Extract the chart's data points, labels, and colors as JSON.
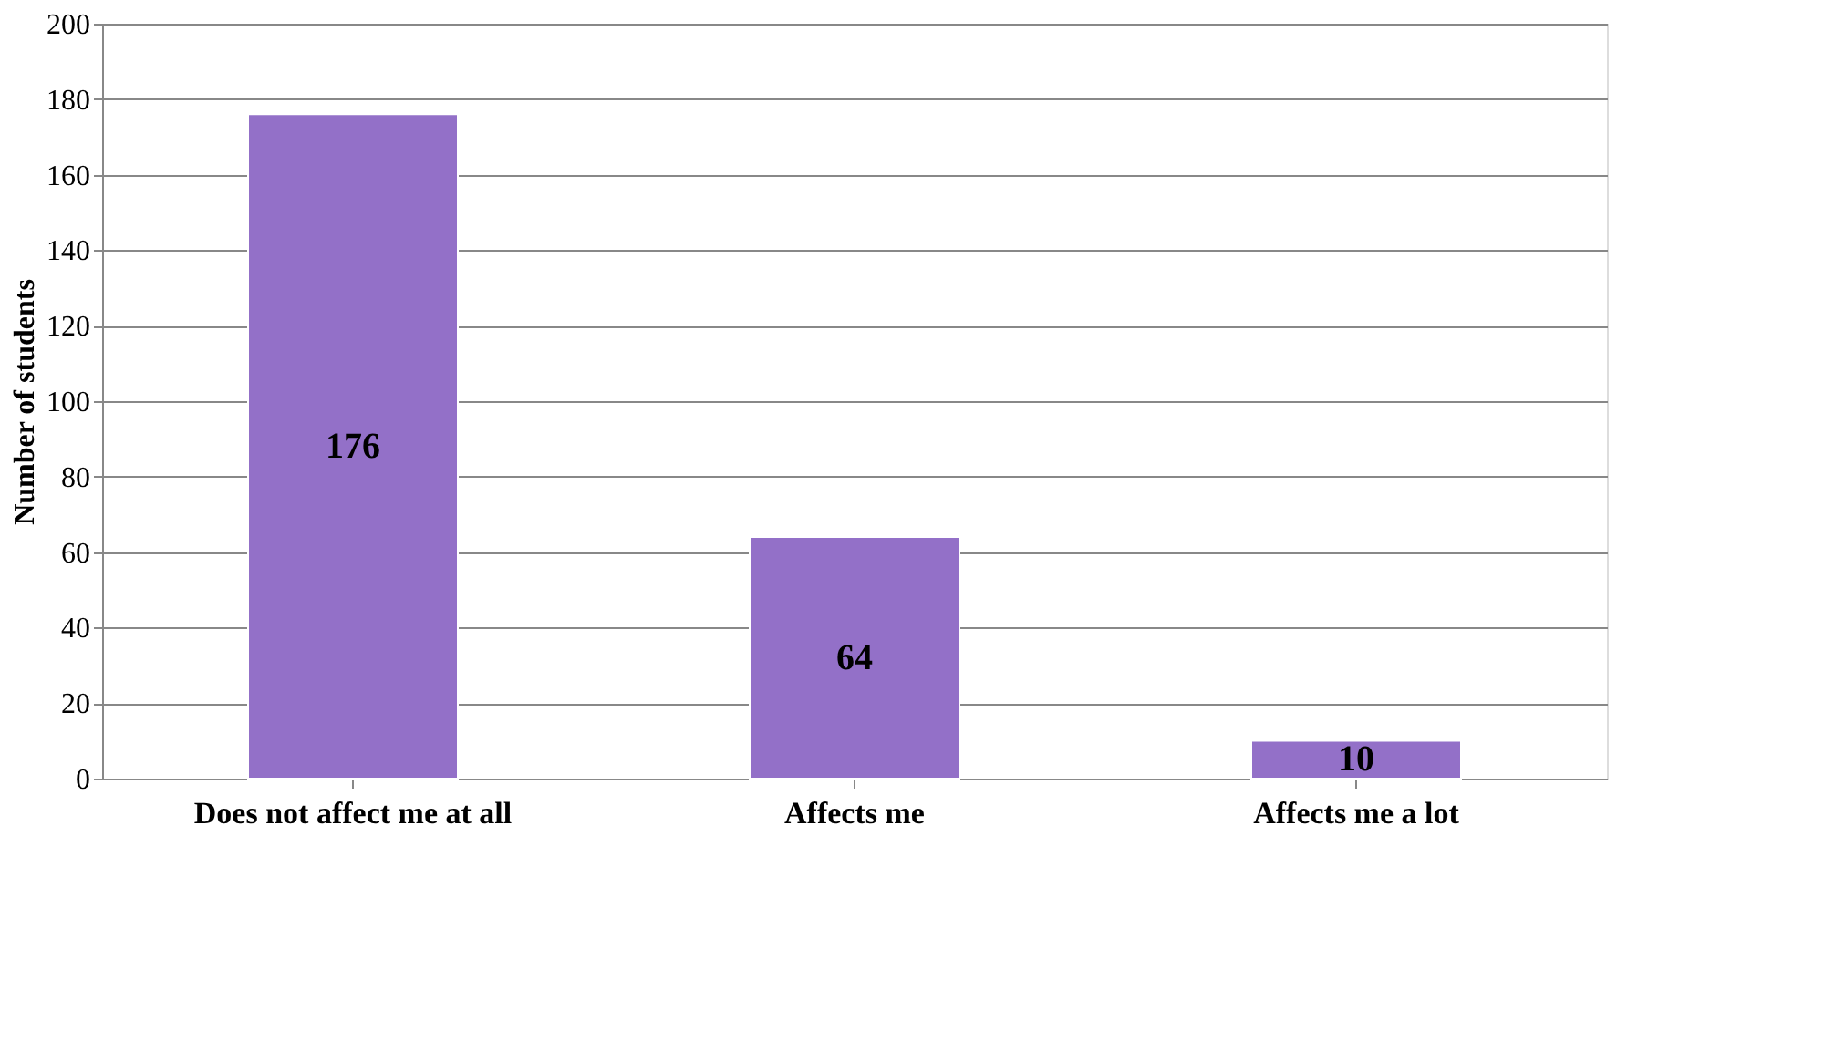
{
  "chart_data": {
    "type": "bar",
    "ylabel": "Number of students",
    "categories": [
      "Does not affect me at all",
      "Affects me",
      "Affects me a lot"
    ],
    "values": [
      176,
      64,
      10
    ],
    "color": "#9370c8",
    "ylim": [
      0,
      200
    ],
    "yticks": [
      0,
      20,
      40,
      60,
      80,
      100,
      120,
      140,
      160,
      180,
      200
    ],
    "grid": "y",
    "data_labels": true
  }
}
